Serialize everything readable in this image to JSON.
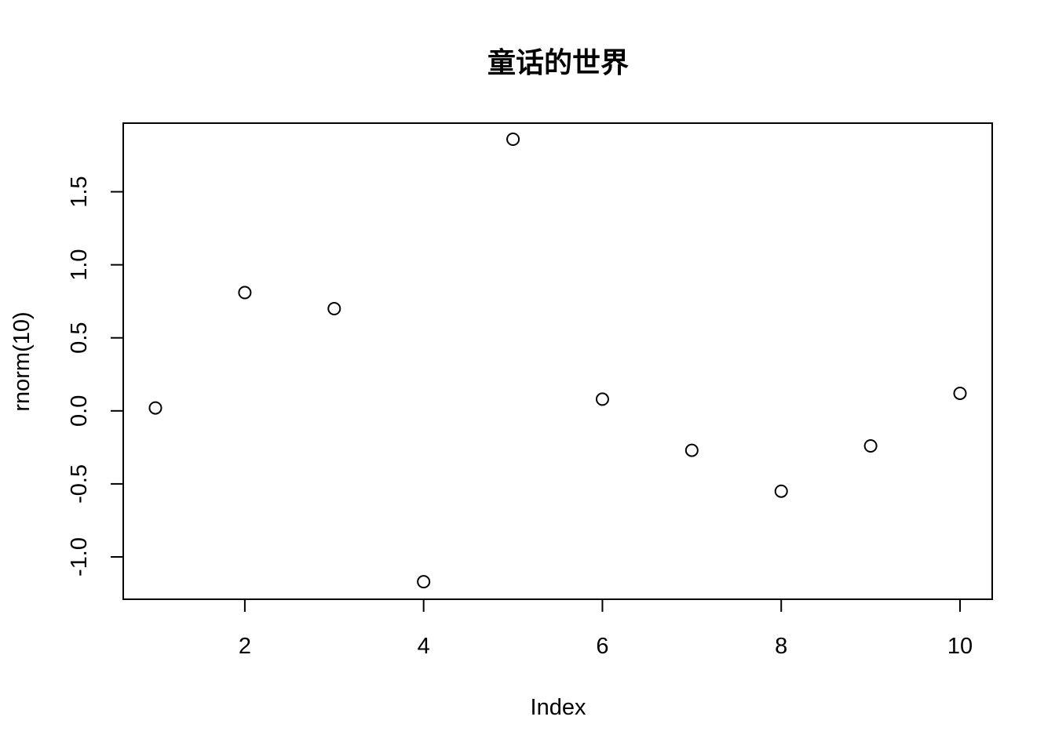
{
  "chart_data": {
    "type": "scatter",
    "title": "童话的世界",
    "xlabel": "Index",
    "ylabel": "rnorm(10)",
    "xlim": [
      0.64,
      10.36
    ],
    "ylim": [
      -1.29,
      1.97
    ],
    "xticks": [
      2,
      4,
      6,
      8,
      10
    ],
    "xtick_labels": [
      "2",
      "4",
      "6",
      "8",
      "10"
    ],
    "yticks": [
      -1.0,
      -0.5,
      0.0,
      0.5,
      1.0,
      1.5
    ],
    "ytick_labels": [
      "-1.0",
      "-0.5",
      "0.0",
      "0.5",
      "1.0",
      "1.5"
    ],
    "grid": false,
    "marker": "open-circle",
    "x": [
      1,
      2,
      3,
      4,
      5,
      6,
      7,
      8,
      9,
      10
    ],
    "y": [
      0.02,
      0.81,
      0.7,
      -1.17,
      1.86,
      0.08,
      -0.27,
      -0.55,
      -0.24,
      0.12
    ]
  }
}
